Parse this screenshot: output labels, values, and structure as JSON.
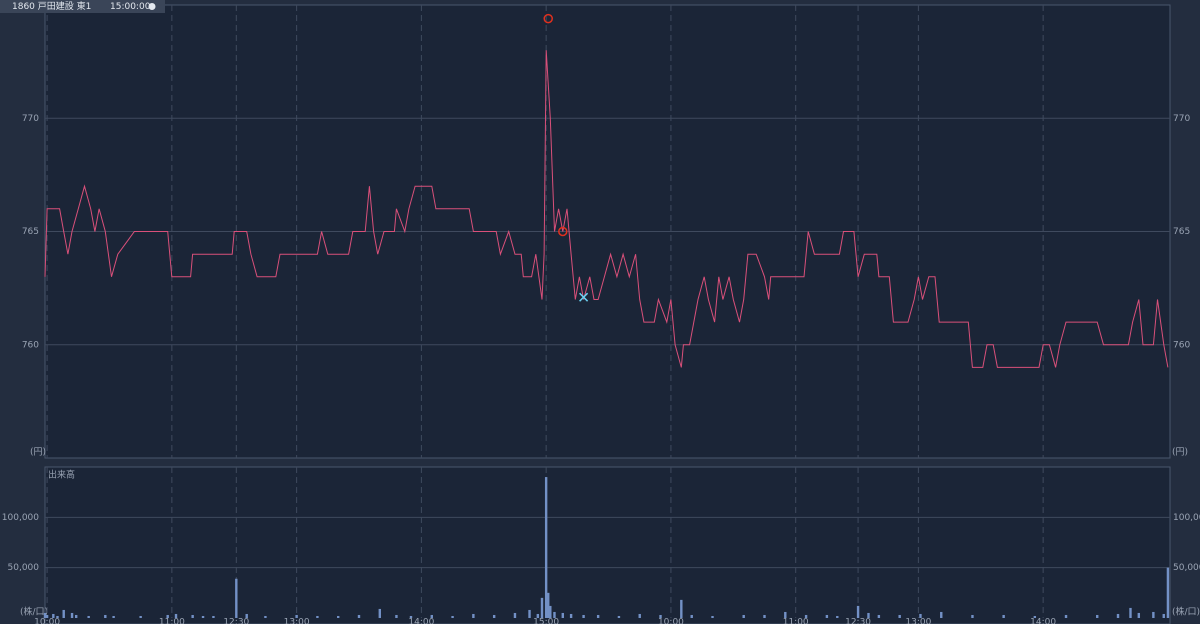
{
  "header": {
    "symbol": "1860 戸田建設 東1",
    "time": "15:00:00"
  },
  "chart_data": [
    {
      "type": "line",
      "y_unit": "(円)",
      "color": "#d9507a",
      "grid": true,
      "xlim": [
        -1,
        540
      ],
      "ylim": [
        755,
        775
      ],
      "yticks": [
        760,
        765,
        770
      ],
      "x": [
        -1,
        0,
        6,
        8,
        10,
        12,
        15,
        18,
        21,
        23,
        25,
        28,
        31,
        34,
        42,
        58,
        60,
        69,
        70,
        89,
        90,
        96,
        98,
        101,
        110,
        112,
        130,
        132,
        135,
        145,
        147,
        153,
        155,
        157,
        159,
        162,
        167,
        168,
        172,
        174,
        177,
        185,
        187,
        203,
        205,
        216,
        218,
        222,
        225,
        228,
        229,
        233,
        235,
        238,
        239,
        240,
        242,
        244,
        246,
        248,
        250,
        252,
        254,
        256,
        258,
        261,
        263,
        265,
        268,
        271,
        274,
        277,
        280,
        283,
        285,
        287,
        292,
        294,
        298,
        300,
        302,
        305,
        306,
        309,
        311,
        313,
        316,
        318,
        321,
        323,
        325,
        328,
        330,
        333,
        335,
        337,
        341,
        345,
        347,
        348,
        352,
        364,
        366,
        369,
        381,
        383,
        388,
        390,
        393,
        399,
        400,
        405,
        407,
        414,
        417,
        419,
        421,
        424,
        427,
        429,
        443,
        445,
        450,
        452,
        455,
        457,
        477,
        479,
        482,
        485,
        487,
        490,
        505,
        508,
        520,
        522,
        525,
        527,
        532,
        534,
        537,
        539
      ],
      "values": [
        763,
        766,
        766,
        765,
        764,
        765,
        766,
        767,
        766,
        765,
        766,
        765,
        763,
        764,
        765,
        765,
        763,
        763,
        764,
        764,
        765,
        765,
        764,
        763,
        763,
        764,
        764,
        765,
        764,
        764,
        765,
        765,
        767,
        765,
        764,
        765,
        765,
        766,
        765,
        766,
        767,
        767,
        766,
        766,
        765,
        765,
        764,
        765,
        764,
        764,
        763,
        763,
        764,
        762,
        764,
        773,
        770,
        765,
        766,
        765,
        766,
        764,
        762,
        763,
        762,
        763,
        762,
        762,
        763,
        764,
        763,
        764,
        763,
        764,
        762,
        761,
        761,
        762,
        761,
        762,
        760,
        759,
        760,
        760,
        761,
        762,
        763,
        762,
        761,
        763,
        762,
        763,
        762,
        761,
        762,
        764,
        764,
        763,
        762,
        763,
        763,
        763,
        765,
        764,
        764,
        765,
        765,
        763,
        764,
        764,
        763,
        763,
        761,
        761,
        762,
        763,
        762,
        763,
        763,
        761,
        761,
        759,
        759,
        760,
        760,
        759,
        759,
        760,
        760,
        759,
        760,
        761,
        761,
        760,
        760,
        761,
        762,
        760,
        760,
        762,
        760,
        759
      ],
      "markers": [
        {
          "x": 241,
          "y": 774.4,
          "symbol": "circle",
          "color": "#e0301e"
        },
        {
          "x": 248,
          "y": 765,
          "symbol": "circle",
          "color": "#e0301e"
        },
        {
          "x": 258,
          "y": 762.1,
          "symbol": "cross",
          "color": "#6ad0f0"
        }
      ]
    },
    {
      "type": "bar",
      "title": "出来高",
      "y_unit": "(株/口)",
      "color": "#7391c6",
      "grid": true,
      "xlim": [
        -1,
        540
      ],
      "ylim": [
        0,
        150000
      ],
      "yticks": [
        {
          "value": 50000,
          "label": "50,000"
        },
        {
          "value": 100000,
          "label": "100,000"
        }
      ],
      "xticks": [
        {
          "value": 0,
          "label": "10:00"
        },
        {
          "value": 60,
          "label": "11:00"
        },
        {
          "value": 91,
          "label": "12:30"
        },
        {
          "value": 120,
          "label": "13:00"
        },
        {
          "value": 180,
          "label": "14:00"
        },
        {
          "value": 240,
          "label": "15:00"
        },
        {
          "value": 300,
          "label": "10:00"
        },
        {
          "value": 360,
          "label": "11:00"
        },
        {
          "value": 390,
          "label": "12:30"
        },
        {
          "value": 419,
          "label": "13:00"
        },
        {
          "value": 479,
          "label": "14:00"
        }
      ],
      "x": [
        -1,
        0,
        3,
        5,
        8,
        12,
        14,
        20,
        28,
        32,
        45,
        58,
        62,
        70,
        75,
        80,
        91,
        96,
        105,
        120,
        130,
        140,
        150,
        160,
        168,
        175,
        185,
        195,
        205,
        215,
        225,
        232,
        236,
        238,
        240,
        241,
        242,
        244,
        248,
        252,
        258,
        265,
        275,
        285,
        295,
        305,
        310,
        320,
        335,
        345,
        355,
        365,
        375,
        380,
        390,
        395,
        400,
        410,
        420,
        430,
        445,
        460,
        475,
        490,
        505,
        515,
        521,
        525,
        532,
        537,
        539
      ],
      "values": [
        5000,
        3000,
        4000,
        2000,
        8000,
        5000,
        3000,
        2000,
        3000,
        2000,
        2000,
        3000,
        4000,
        3000,
        2000,
        2000,
        39000,
        4000,
        2000,
        3000,
        2000,
        2000,
        3000,
        9000,
        3000,
        2000,
        3000,
        2000,
        4000,
        3000,
        5000,
        8000,
        4000,
        20000,
        140000,
        25000,
        12000,
        6000,
        5000,
        4000,
        3000,
        3000,
        2000,
        4000,
        3000,
        18000,
        3000,
        2000,
        3000,
        3000,
        6000,
        3000,
        3000,
        2000,
        12000,
        5000,
        3000,
        3000,
        4000,
        6000,
        3000,
        3000,
        2000,
        3000,
        3000,
        4000,
        10000,
        5000,
        6000,
        4000,
        50000
      ]
    }
  ]
}
